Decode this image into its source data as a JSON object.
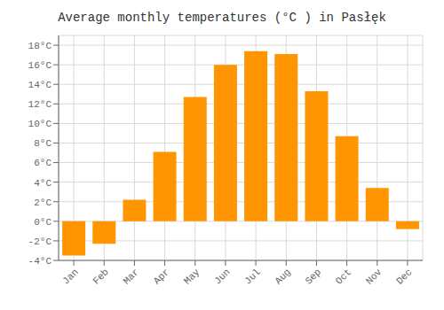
{
  "chart_data": {
    "type": "bar",
    "title": "Average monthly temperatures (°C ) in Pasłęk",
    "categories": [
      "Jan",
      "Feb",
      "Mar",
      "Apr",
      "May",
      "Jun",
      "Jul",
      "Aug",
      "Sep",
      "Oct",
      "Nov",
      "Dec"
    ],
    "values": [
      -3.5,
      -2.3,
      2.2,
      7.1,
      12.7,
      16.0,
      17.4,
      17.1,
      13.3,
      8.7,
      3.4,
      -0.8
    ],
    "color": "#FF9500",
    "ylim": [
      -4,
      19
    ],
    "yticks": [
      {
        "value": -4,
        "label": "-4°C"
      },
      {
        "value": -2,
        "label": "-2°C"
      },
      {
        "value": 0,
        "label": "0°C"
      },
      {
        "value": 2,
        "label": "2°C"
      },
      {
        "value": 4,
        "label": "4°C"
      },
      {
        "value": 6,
        "label": "6°C"
      },
      {
        "value": 8,
        "label": "8°C"
      },
      {
        "value": 10,
        "label": "10°C"
      },
      {
        "value": 12,
        "label": "12°C"
      },
      {
        "value": 14,
        "label": "14°C"
      },
      {
        "value": 16,
        "label": "16°C"
      },
      {
        "value": 18,
        "label": "18°C"
      }
    ],
    "grid": true
  }
}
